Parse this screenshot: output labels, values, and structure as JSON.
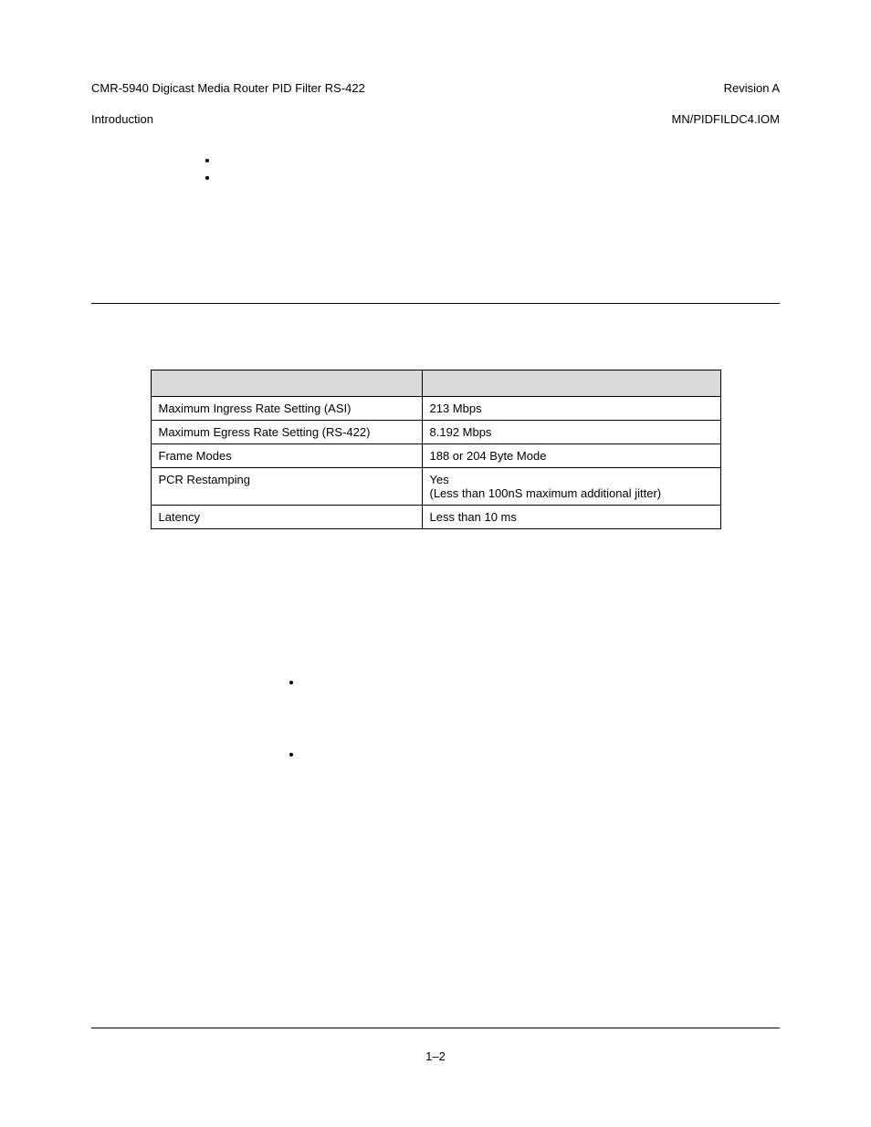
{
  "header": {
    "left_line1": "CMR-5940 Digicast Media Router PID Filter RS-422",
    "left_line2": "Introduction",
    "right_line1": "Revision A",
    "right_line2": "MN/PIDFILDC4.IOM"
  },
  "top_bullets": [
    "",
    ""
  ],
  "spec_table": {
    "columns": [
      "",
      ""
    ],
    "rows": [
      [
        "Maximum Ingress Rate Setting (ASI)",
        "213 Mbps"
      ],
      [
        "Maximum Egress Rate Setting (RS-422)",
        "8.192 Mbps"
      ],
      [
        "Frame Modes",
        "188 or 204 Byte Mode"
      ],
      [
        "PCR Restamping",
        "Yes\n(Less than 100nS maximum additional jitter)"
      ],
      [
        "Latency",
        "Less than 10 ms"
      ]
    ]
  },
  "lower_bullets": [
    "",
    ""
  ],
  "page_number": "1–2",
  "colors": {
    "table_header_bg": "#d9d9d9",
    "border": "#000000",
    "text": "#000000",
    "background": "#ffffff"
  },
  "typography": {
    "body_fontsize_pt": 10,
    "font_family": "Arial"
  }
}
